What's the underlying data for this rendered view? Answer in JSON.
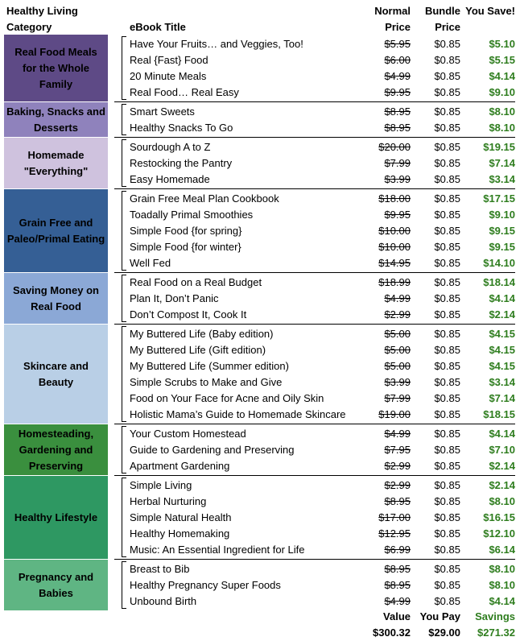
{
  "header": {
    "category": "Healthy Living Category",
    "title": "eBook Title",
    "normal": "Normal Price",
    "bundle": "Bundle Price",
    "save": "You Save!"
  },
  "colors": {
    "savings_green": "#2e7d1e",
    "cat_0": "#5e4a86",
    "cat_1": "#8f82bc",
    "cat_2": "#cfc2de",
    "cat_3": "#355f95",
    "cat_4": "#8ba8d6",
    "cat_5": "#b9cfe6",
    "cat_6": "#3a8f3e",
    "cat_7": "#2e9862",
    "cat_8": "#5fb583"
  },
  "categories": [
    {
      "name": "Real Food Meals for the Whole Family",
      "color": "#5e4a86",
      "books": [
        {
          "title": "Have Your Fruits… and Veggies, Too!",
          "normal": "$5.95",
          "bundle": "$0.85",
          "save": "$5.10"
        },
        {
          "title": "Real {Fast} Food",
          "normal": "$6.00",
          "bundle": "$0.85",
          "save": "$5.15"
        },
        {
          "title": "20 Minute Meals",
          "normal": "$4.99",
          "bundle": "$0.85",
          "save": "$4.14"
        },
        {
          "title": "Real Food… Real Easy",
          "normal": "$9.95",
          "bundle": "$0.85",
          "save": "$9.10"
        }
      ]
    },
    {
      "name": "Baking, Snacks and Desserts",
      "color": "#8f82bc",
      "books": [
        {
          "title": "Smart Sweets",
          "normal": "$8.95",
          "bundle": "$0.85",
          "save": "$8.10"
        },
        {
          "title": "Healthy Snacks To Go",
          "normal": "$8.95",
          "bundle": "$0.85",
          "save": "$8.10"
        }
      ]
    },
    {
      "name": "Homemade \"Everything\"",
      "color": "#cfc2de",
      "books": [
        {
          "title": "Sourdough A to Z",
          "normal": "$20.00",
          "bundle": "$0.85",
          "save": "$19.15"
        },
        {
          "title": "Restocking the Pantry",
          "normal": "$7.99",
          "bundle": "$0.85",
          "save": "$7.14"
        },
        {
          "title": "Easy Homemade",
          "normal": "$3.99",
          "bundle": "$0.85",
          "save": "$3.14"
        }
      ]
    },
    {
      "name": "Grain Free and Paleo/Primal Eating",
      "color": "#355f95",
      "books": [
        {
          "title": "Grain Free Meal Plan Cookbook",
          "normal": "$18.00",
          "bundle": "$0.85",
          "save": "$17.15"
        },
        {
          "title": "Toadally Primal Smoothies",
          "normal": "$9.95",
          "bundle": "$0.85",
          "save": "$9.10"
        },
        {
          "title": "Simple Food {for spring}",
          "normal": "$10.00",
          "bundle": "$0.85",
          "save": "$9.15"
        },
        {
          "title": "Simple Food {for winter}",
          "normal": "$10.00",
          "bundle": "$0.85",
          "save": "$9.15"
        },
        {
          "title": "Well Fed",
          "normal": "$14.95",
          "bundle": "$0.85",
          "save": "$14.10"
        }
      ]
    },
    {
      "name": "Saving Money on Real Food",
      "color": "#8ba8d6",
      "books": [
        {
          "title": "Real Food on a Real Budget",
          "normal": "$18.99",
          "bundle": "$0.85",
          "save": "$18.14"
        },
        {
          "title": "Plan It, Don’t Panic",
          "normal": "$4.99",
          "bundle": "$0.85",
          "save": "$4.14"
        },
        {
          "title": "Don’t Compost It, Cook It",
          "normal": "$2.99",
          "bundle": "$0.85",
          "save": "$2.14"
        }
      ]
    },
    {
      "name": "Skincare and Beauty",
      "color": "#b9cfe6",
      "books": [
        {
          "title": "My Buttered Life (Baby edition)",
          "normal": "$5.00",
          "bundle": "$0.85",
          "save": "$4.15"
        },
        {
          "title": "My Buttered Life (Gift edition)",
          "normal": "$5.00",
          "bundle": "$0.85",
          "save": "$4.15"
        },
        {
          "title": "My Buttered Life (Summer edition)",
          "normal": "$5.00",
          "bundle": "$0.85",
          "save": "$4.15"
        },
        {
          "title": "Simple Scrubs to Make and Give",
          "normal": "$3.99",
          "bundle": "$0.85",
          "save": "$3.14"
        },
        {
          "title": "Food on Your Face for Acne and Oily Skin",
          "normal": "$7.99",
          "bundle": "$0.85",
          "save": "$7.14"
        },
        {
          "title": "Holistic Mama’s Guide to Homemade Skincare",
          "normal": "$19.00",
          "bundle": "$0.85",
          "save": "$18.15"
        }
      ]
    },
    {
      "name": "Homesteading, Gardening and Preserving",
      "color": "#3a8f3e",
      "books": [
        {
          "title": "Your Custom Homestead",
          "normal": "$4.99",
          "bundle": "$0.85",
          "save": "$4.14"
        },
        {
          "title": "Guide to Gardening and Preserving",
          "normal": "$7.95",
          "bundle": "$0.85",
          "save": "$7.10"
        },
        {
          "title": "Apartment Gardening",
          "normal": "$2.99",
          "bundle": "$0.85",
          "save": "$2.14"
        }
      ]
    },
    {
      "name": "Healthy Lifestyle",
      "color": "#2e9862",
      "books": [
        {
          "title": "Simple Living",
          "normal": "$2.99",
          "bundle": "$0.85",
          "save": "$2.14"
        },
        {
          "title": "Herbal Nurturing",
          "normal": "$8.95",
          "bundle": "$0.85",
          "save": "$8.10"
        },
        {
          "title": "Simple Natural Health",
          "normal": "$17.00",
          "bundle": "$0.85",
          "save": "$16.15"
        },
        {
          "title": "Healthy Homemaking",
          "normal": "$12.95",
          "bundle": "$0.85",
          "save": "$12.10"
        },
        {
          "title": "Music: An Essential Ingredient for Life",
          "normal": "$6.99",
          "bundle": "$0.85",
          "save": "$6.14"
        }
      ]
    },
    {
      "name": "Pregnancy and Babies",
      "color": "#5fb583",
      "books": [
        {
          "title": "Breast to Bib",
          "normal": "$8.95",
          "bundle": "$0.85",
          "save": "$8.10"
        },
        {
          "title": "Healthy Pregnancy Super Foods",
          "normal": "$8.95",
          "bundle": "$0.85",
          "save": "$8.10"
        },
        {
          "title": "Unbound Birth",
          "normal": "$4.99",
          "bundle": "$0.85",
          "save": "$4.14"
        }
      ]
    }
  ],
  "totals": {
    "value_label": "Value",
    "value": "$300.32",
    "pay_label": "You Pay",
    "pay": "$29.00",
    "savings_label": "Savings",
    "savings": "$271.32"
  }
}
